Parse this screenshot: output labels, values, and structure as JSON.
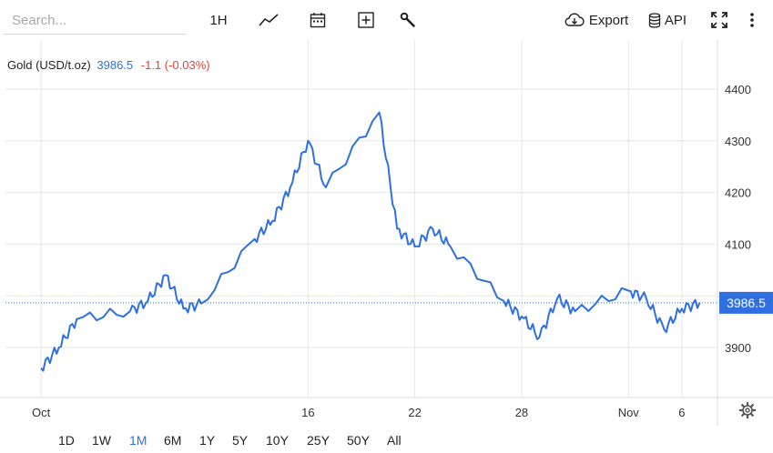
{
  "toolbar": {
    "search_placeholder": "Search...",
    "interval_label": "1H",
    "export_label": "Export",
    "api_label": "API",
    "icons": [
      "line-chart-icon",
      "calendar-icon",
      "add-indicator-icon",
      "wrench-icon",
      "cloud-download-icon",
      "database-icon",
      "fullscreen-icon",
      "more-vertical-icon"
    ]
  },
  "legend": {
    "instrument": "Gold (USD/t.oz)",
    "last": "3986.5",
    "change": "-1.1 (-0.03%)"
  },
  "colors": {
    "line": "#2f6fe0",
    "last_price_tag": "#2f6fe0",
    "change_negative": "#e0443b",
    "grid": "#e6e6e6"
  },
  "chart_data": {
    "type": "line",
    "title": "",
    "xlabel": "",
    "ylabel": "",
    "series": [
      {
        "name": "Gold (USD/t.oz)",
        "x": [
          "2025-10-01",
          "2025-10-02",
          "2025-10-03",
          "2025-10-06",
          "2025-10-07",
          "2025-10-08",
          "2025-10-09",
          "2025-10-10",
          "2025-10-13",
          "2025-10-14",
          "2025-10-15",
          "2025-10-16",
          "2025-10-17",
          "2025-10-20",
          "2025-10-21",
          "2025-10-22",
          "2025-10-23",
          "2025-10-24",
          "2025-10-27",
          "2025-10-28",
          "2025-10-29",
          "2025-10-30",
          "2025-10-31",
          "2025-11-03",
          "2025-11-04",
          "2025-11-05",
          "2025-11-06",
          "2025-11-07"
        ],
        "values": [
          3860,
          3900,
          3955,
          3970,
          3990,
          4040,
          3975,
          3985,
          4110,
          4145,
          4210,
          4300,
          4210,
          4355,
          4130,
          4095,
          4130,
          4095,
          3990,
          3960,
          3920,
          3995,
          3970,
          4010,
          3995,
          3935,
          3975,
          3986.5
        ]
      }
    ],
    "x_ticks": [
      "Oct",
      "16",
      "22",
      "28",
      "Nov",
      "6"
    ],
    "y_ticks": [
      3900,
      4000,
      4100,
      4200,
      4300,
      4400
    ],
    "ylim": [
      3810,
      4450
    ],
    "last_price_label": "3986.5",
    "grid": true,
    "legend_position": "top-left"
  },
  "ranges": {
    "items": [
      "1D",
      "1W",
      "1M",
      "6M",
      "1Y",
      "5Y",
      "10Y",
      "25Y",
      "50Y",
      "All"
    ],
    "active": "1M"
  }
}
